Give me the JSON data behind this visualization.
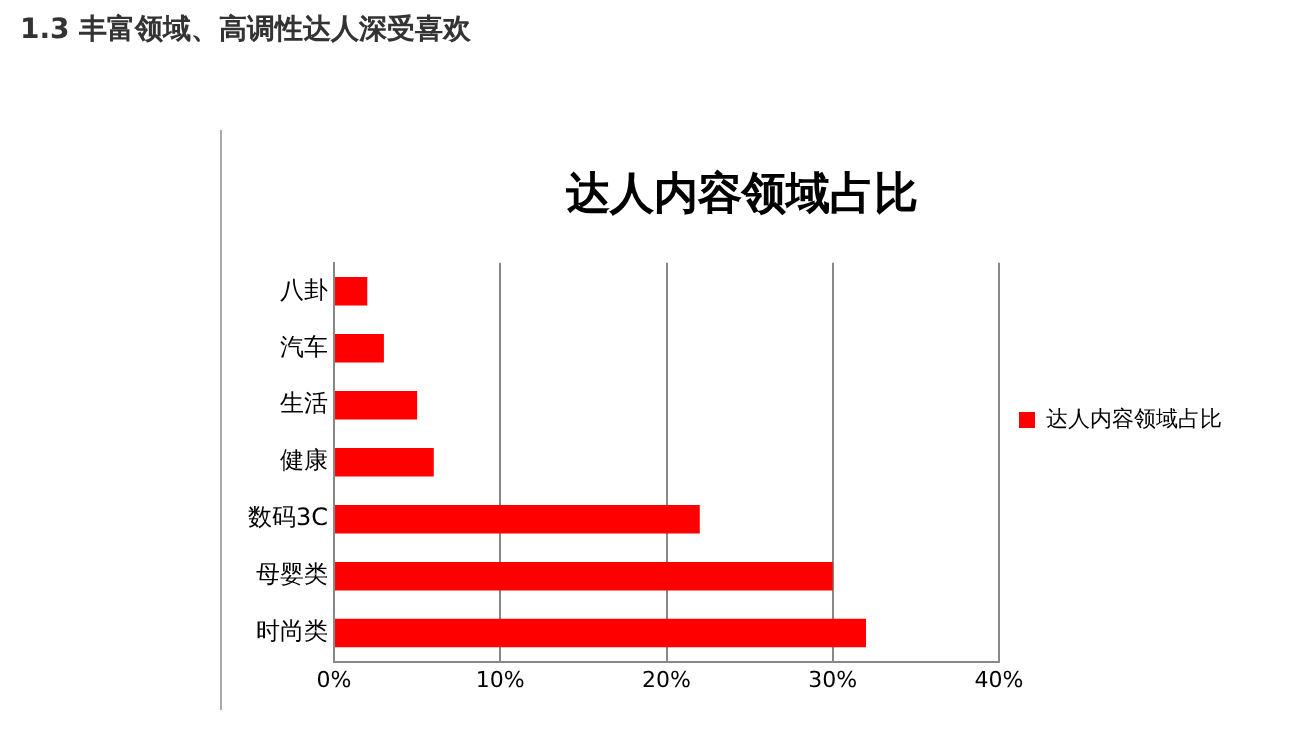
{
  "chart_data": {
    "type": "bar",
    "orientation": "horizontal",
    "title": "达人内容领域占比",
    "annotations": [
      "1.3 丰富领域、高调性达人深受喜欢"
    ],
    "categories": [
      "八卦",
      "汽车",
      "生活",
      "健康",
      "数码3C",
      "母婴类",
      "时尚类"
    ],
    "series": [
      {
        "name": "达人内容领域占比",
        "color": "#ff0000",
        "values": [
          2,
          3,
          5,
          6,
          22,
          30,
          32
        ]
      }
    ],
    "xlim": [
      0,
      40
    ],
    "xticks": [
      {
        "value": 0,
        "label": "0%"
      },
      {
        "value": 10,
        "label": "10%"
      },
      {
        "value": 20,
        "label": "20%"
      },
      {
        "value": 30,
        "label": "30%"
      },
      {
        "value": 40,
        "label": "40%"
      }
    ],
    "grid": "x",
    "legend": "right"
  }
}
